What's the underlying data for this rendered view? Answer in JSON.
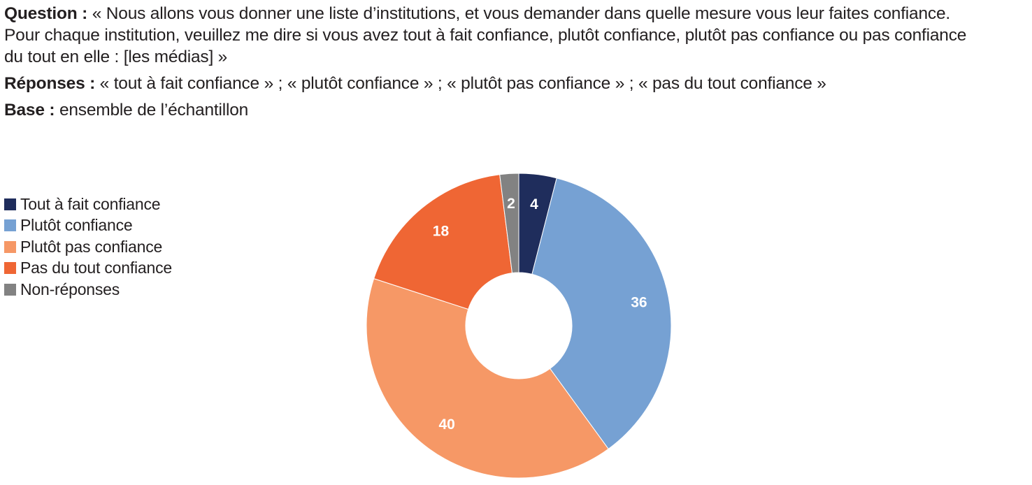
{
  "header": {
    "question_label": "Question :",
    "question_text_line1": "« Nous allons vous donner une liste d’institutions, et vous demander dans quelle mesure vous leur faites confiance.",
    "question_text_line2": "Pour chaque institution, veuillez me dire si vous avez tout à fait confiance, plutôt confiance, plutôt pas confiance ou pas confiance",
    "question_text_line3": "du tout en elle : [les médias] »",
    "responses_label": "Réponses :",
    "responses_text": "« tout à fait confiance » ; « plutôt confiance » ; « plutôt pas confiance » ; « pas du tout confiance »",
    "base_label": "Base :",
    "base_text": "ensemble de l’échantillon"
  },
  "chart_data": {
    "type": "pie",
    "variant": "donut",
    "legend_position": "left",
    "slices": [
      {
        "label": "Tout à fait confiance",
        "value": 4,
        "color": "#1f2d5c"
      },
      {
        "label": "Plutôt confiance",
        "value": 36,
        "color": "#76a1d3"
      },
      {
        "label": "Plutôt pas confiance",
        "value": 40,
        "color": "#f69866"
      },
      {
        "label": "Pas du tout confiance",
        "value": 18,
        "color": "#ef6634"
      },
      {
        "label": "Non-réponses",
        "value": 2,
        "color": "#828282"
      }
    ]
  }
}
